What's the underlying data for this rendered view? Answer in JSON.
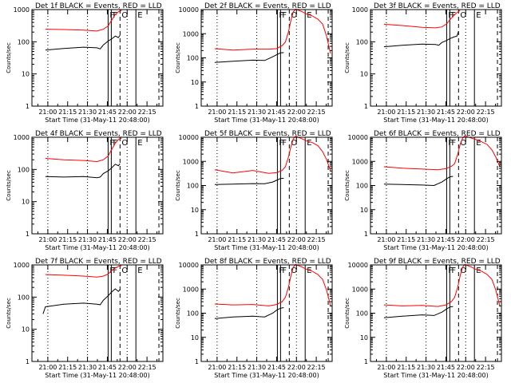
{
  "figure": {
    "x_tick_labels": [
      "21:00",
      "21:15",
      "21:30",
      "21:45",
      "22:00",
      "22:15"
    ],
    "x_label": "Start Time (31-May-11 20:48:00)",
    "y_label": "Counts/sec",
    "marker_labels": [
      "F",
      "F",
      "O",
      "E"
    ],
    "colors": {
      "events": "#000000",
      "lld": "#ff0000",
      "axes": "#000000"
    }
  },
  "chart_data": [
    {
      "type": "line",
      "title": "Det 1f BLACK = Events, RED = LLD",
      "y_scale": "log",
      "ylim": [
        1,
        1000
      ],
      "y_tick_labels": [
        "1000",
        "100",
        "10",
        "1"
      ],
      "xlim": [
        20.8,
        22.45
      ],
      "series": [
        {
          "x": [
            20.97,
            21.2,
            21.45,
            21.62,
            21.7,
            21.76,
            21.8,
            21.85,
            21.89,
            21.93
          ],
          "y": [
            245,
            240,
            230,
            215,
            245,
            310,
            450,
            700,
            850,
            950
          ]
        },
        {
          "x": [
            20.97,
            21.2,
            21.45,
            21.62,
            21.66,
            21.7,
            21.76,
            21.8,
            21.85,
            21.89,
            21.91
          ],
          "y": [
            55,
            62,
            68,
            65,
            60,
            80,
            105,
            120,
            150,
            135,
            160
          ]
        }
      ],
      "marker_lines": [
        21.76,
        21.8,
        21.91,
        22.11,
        22.4
      ]
    },
    {
      "type": "line",
      "title": "Det 2f BLACK = Events, RED = LLD",
      "y_scale": "log",
      "ylim": [
        1,
        10000
      ],
      "y_tick_labels": [
        "10000",
        "1000",
        "100",
        "10",
        "1"
      ],
      "xlim": [
        20.8,
        22.45
      ],
      "series": [
        {
          "x": [
            20.97,
            21.2,
            21.45,
            21.65,
            21.75,
            21.82,
            21.86,
            21.9,
            21.93,
            21.96,
            21.99,
            22.02,
            22.06,
            22.13,
            22.2,
            22.27,
            22.33,
            22.38,
            22.43
          ],
          "y": [
            240,
            210,
            230,
            230,
            240,
            320,
            450,
            1200,
            3500,
            8000,
            10500,
            9500,
            8500,
            6500,
            5500,
            4000,
            2500,
            800,
            150
          ]
        },
        {
          "x": [
            20.97,
            21.2,
            21.45,
            21.6,
            21.7,
            21.76,
            21.8,
            21.84
          ],
          "y": [
            65,
            72,
            80,
            78,
            110,
            140,
            160,
            165
          ]
        }
      ],
      "marker_lines": [
        21.76,
        21.8,
        21.91,
        22.11,
        22.4
      ]
    },
    {
      "type": "line",
      "title": "Det 3f BLACK = Events, RED = LLD",
      "y_scale": "log",
      "ylim": [
        1,
        1000
      ],
      "y_tick_labels": [
        "1000",
        "100",
        "10",
        "1"
      ],
      "xlim": [
        20.8,
        22.45
      ],
      "series": [
        {
          "x": [
            20.97,
            21.2,
            21.45,
            21.62,
            21.7,
            21.76,
            21.8,
            21.85,
            21.89,
            21.93
          ],
          "y": [
            350,
            320,
            280,
            270,
            290,
            360,
            480,
            650,
            800,
            950
          ]
        },
        {
          "x": [
            20.97,
            21.2,
            21.45,
            21.62,
            21.66,
            21.7,
            21.76,
            21.8,
            21.85,
            21.89,
            21.91
          ],
          "y": [
            70,
            78,
            85,
            82,
            78,
            95,
            110,
            125,
            140,
            150,
            210
          ]
        }
      ],
      "marker_lines": [
        21.76,
        21.8,
        21.91,
        22.11,
        22.4
      ]
    },
    {
      "type": "line",
      "title": "Det 4f BLACK = Events, RED = LLD",
      "y_scale": "log",
      "ylim": [
        1,
        1000
      ],
      "y_tick_labels": [
        "1000",
        "100",
        "10",
        "1"
      ],
      "xlim": [
        20.8,
        22.45
      ],
      "series": [
        {
          "x": [
            20.97,
            21.2,
            21.45,
            21.62,
            21.7,
            21.76,
            21.8,
            21.85,
            21.89,
            21.93
          ],
          "y": [
            220,
            200,
            190,
            175,
            200,
            260,
            400,
            650,
            850,
            950
          ]
        },
        {
          "x": [
            20.97,
            21.2,
            21.45,
            21.62,
            21.66,
            21.7,
            21.76,
            21.8,
            21.85,
            21.89,
            21.91
          ],
          "y": [
            60,
            58,
            60,
            55,
            58,
            75,
            90,
            110,
            145,
            130,
            150
          ]
        }
      ],
      "marker_lines": [
        21.76,
        21.8,
        21.91,
        22.11,
        22.4
      ]
    },
    {
      "type": "line",
      "title": "Det 5f BLACK = Events, RED = LLD",
      "y_scale": "log",
      "ylim": [
        1,
        10000
      ],
      "y_tick_labels": [
        "10000",
        "1000",
        "100",
        "10",
        "1"
      ],
      "xlim": [
        20.8,
        22.45
      ],
      "series": [
        {
          "x": [
            20.97,
            21.2,
            21.45,
            21.65,
            21.75,
            21.82,
            21.86,
            21.9,
            21.93,
            21.96,
            21.99,
            22.02,
            22.06,
            22.13,
            22.2,
            22.27,
            22.33,
            22.38,
            22.43
          ],
          "y": [
            450,
            330,
            420,
            320,
            340,
            420,
            600,
            1500,
            4000,
            8500,
            11000,
            10000,
            9000,
            7000,
            6000,
            4500,
            2500,
            1200,
            400
          ]
        },
        {
          "x": [
            20.97,
            21.2,
            21.45,
            21.6,
            21.7,
            21.76,
            21.8,
            21.84
          ],
          "y": [
            110,
            115,
            120,
            118,
            140,
            170,
            195,
            200
          ]
        }
      ],
      "marker_lines": [
        21.76,
        21.8,
        21.91,
        22.11,
        22.4
      ]
    },
    {
      "type": "line",
      "title": "Det 6f BLACK = Events, RED = LLD",
      "y_scale": "log",
      "ylim": [
        1,
        10000
      ],
      "y_tick_labels": [
        "10000",
        "1000",
        "100",
        "10",
        "1"
      ],
      "xlim": [
        20.8,
        22.45
      ],
      "series": [
        {
          "x": [
            20.97,
            21.2,
            21.45,
            21.65,
            21.75,
            21.82,
            21.86,
            21.9,
            21.93,
            21.96,
            21.99,
            22.02,
            22.06,
            22.13,
            22.2,
            22.27,
            22.33,
            22.38,
            22.43
          ],
          "y": [
            600,
            520,
            480,
            450,
            500,
            620,
            800,
            2000,
            5000,
            9000,
            11500,
            10500,
            9500,
            8000,
            6500,
            5000,
            3000,
            1500,
            600
          ]
        },
        {
          "x": [
            20.97,
            21.2,
            21.45,
            21.6,
            21.7,
            21.76,
            21.8,
            21.84
          ],
          "y": [
            115,
            110,
            105,
            100,
            140,
            190,
            230,
            240
          ]
        }
      ],
      "marker_lines": [
        21.76,
        21.8,
        21.91,
        22.11,
        22.4
      ]
    },
    {
      "type": "line",
      "title": "Det 7f BLACK = Events, RED = LLD",
      "y_scale": "log",
      "ylim": [
        1,
        1000
      ],
      "y_tick_labels": [
        "1000",
        "100",
        "10",
        "1"
      ],
      "xlim": [
        20.8,
        22.45
      ],
      "series": [
        {
          "x": [
            20.97,
            21.2,
            21.45,
            21.62,
            21.7,
            21.76,
            21.8,
            21.85,
            21.89,
            21.93
          ],
          "y": [
            500,
            480,
            450,
            420,
            450,
            520,
            650,
            800,
            900,
            950
          ]
        },
        {
          "x": [
            20.94,
            20.97,
            21.2,
            21.45,
            21.62,
            21.66,
            21.7,
            21.76,
            21.8,
            21.85,
            21.89,
            21.91
          ],
          "y": [
            30,
            50,
            60,
            65,
            60,
            58,
            80,
            110,
            140,
            180,
            150,
            170
          ]
        }
      ],
      "marker_lines": [
        21.76,
        21.8,
        21.91,
        22.11,
        22.4
      ]
    },
    {
      "type": "line",
      "title": "Det 8f BLACK = Events, RED = LLD",
      "y_scale": "log",
      "ylim": [
        1,
        10000
      ],
      "y_tick_labels": [
        "10000",
        "1000",
        "100",
        "10",
        "1"
      ],
      "xlim": [
        20.8,
        22.45
      ],
      "series": [
        {
          "x": [
            20.97,
            21.2,
            21.45,
            21.65,
            21.75,
            21.82,
            21.86,
            21.9,
            21.93,
            21.96,
            21.99,
            22.02,
            22.06,
            22.13,
            22.2,
            22.27,
            22.33,
            22.38,
            22.43
          ],
          "y": [
            240,
            220,
            230,
            200,
            230,
            300,
            450,
            1200,
            3500,
            8000,
            10500,
            9500,
            8500,
            6500,
            5500,
            4000,
            2500,
            900,
            200
          ]
        },
        {
          "x": [
            20.97,
            21.2,
            21.45,
            21.6,
            21.7,
            21.76,
            21.8,
            21.84
          ],
          "y": [
            60,
            70,
            75,
            70,
            100,
            140,
            160,
            170
          ]
        }
      ],
      "marker_lines": [
        21.76,
        21.8,
        21.91,
        22.11,
        22.4
      ]
    },
    {
      "type": "line",
      "title": "Det 9f BLACK = Events, RED = LLD",
      "y_scale": "log",
      "ylim": [
        1,
        10000
      ],
      "y_tick_labels": [
        "10000",
        "1000",
        "100",
        "10",
        "1"
      ],
      "xlim": [
        20.8,
        22.45
      ],
      "series": [
        {
          "x": [
            20.97,
            21.2,
            21.45,
            21.65,
            21.75,
            21.82,
            21.86,
            21.9,
            21.93,
            21.96,
            21.99,
            22.02,
            22.06,
            22.13,
            22.2,
            22.27,
            22.33,
            22.38,
            22.43
          ],
          "y": [
            220,
            200,
            210,
            190,
            220,
            300,
            450,
            1200,
            3500,
            8000,
            10500,
            9500,
            8500,
            6500,
            5500,
            4000,
            2500,
            900,
            200
          ]
        },
        {
          "x": [
            20.97,
            21.2,
            21.45,
            21.6,
            21.7,
            21.76,
            21.8,
            21.84
          ],
          "y": [
            65,
            75,
            85,
            80,
            110,
            150,
            180,
            190
          ]
        }
      ],
      "marker_lines": [
        21.76,
        21.8,
        21.91,
        22.11,
        22.4
      ]
    }
  ]
}
